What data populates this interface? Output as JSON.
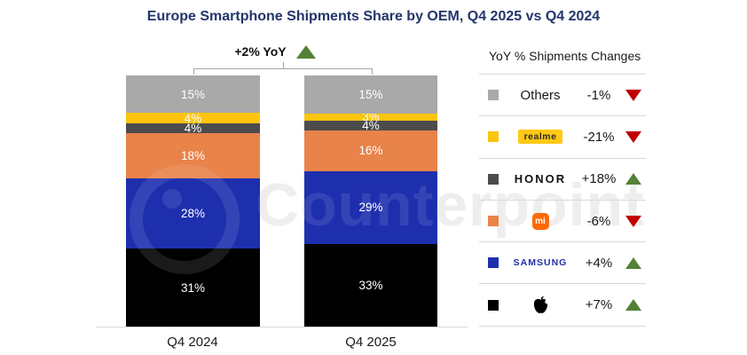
{
  "title": "Europe Smartphone Shipments Share by OEM, Q4 2025 vs Q4 2024",
  "watermark": "Counterpoint",
  "annotation": {
    "label": "+2% YoY",
    "direction": "up"
  },
  "chart_data": {
    "type": "bar",
    "stacked": true,
    "categories": [
      "Q4 2024",
      "Q4 2025"
    ],
    "series": [
      {
        "name": "Apple",
        "color": "#000000",
        "values": [
          31,
          33
        ]
      },
      {
        "name": "Samsung",
        "color": "#1E2FAE",
        "values": [
          28,
          29
        ]
      },
      {
        "name": "Xiaomi",
        "color": "#E8834A",
        "values": [
          18,
          16
        ]
      },
      {
        "name": "HONOR",
        "color": "#4C4C4C",
        "values": [
          4,
          4
        ]
      },
      {
        "name": "realme",
        "color": "#FDC40E",
        "values": [
          4,
          3
        ]
      },
      {
        "name": "Others",
        "color": "#A9A9A9",
        "values": [
          15,
          15
        ]
      }
    ],
    "value_suffix": "%",
    "ylim": [
      0,
      100
    ],
    "title": "Europe Smartphone Shipments Share by OEM, Q4 2025 vs Q4 2024",
    "xlabel": "",
    "ylabel": ""
  },
  "legend": {
    "header": "YoY % Shipments Changes",
    "rows": [
      {
        "brand": "Others",
        "change": "-1%",
        "direction": "down",
        "color": "#A9A9A9"
      },
      {
        "brand": "realme",
        "change": "-21%",
        "direction": "down",
        "color": "#FDC40E"
      },
      {
        "brand": "HONOR",
        "change": "+18%",
        "direction": "up",
        "color": "#4C4C4C"
      },
      {
        "brand": "Xiaomi",
        "change": "-6%",
        "direction": "down",
        "color": "#E8834A",
        "logo_text": "mi"
      },
      {
        "brand": "SAMSUNG",
        "change": "+4%",
        "direction": "up",
        "color": "#1E2FAE"
      },
      {
        "brand": "Apple",
        "change": "+7%",
        "direction": "up",
        "color": "#000000"
      }
    ]
  },
  "colors": {
    "up": "#538135",
    "down": "#C00000",
    "title": "#22356B",
    "axis": "#D9D9D9"
  }
}
